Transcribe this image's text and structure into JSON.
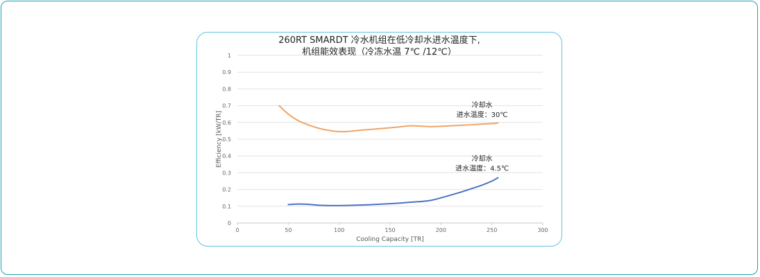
{
  "chart_data": {
    "type": "line",
    "title_line1": "260RT SMARDT 冷水机组在低冷却水进水温度下,",
    "title_line2": "机组能效表现（冷冻水温 7℃ /12℃）",
    "xlabel": "Cooling Capacity [TR]",
    "ylabel": "Efficiency [kW/TR]",
    "xlim": [
      0,
      300
    ],
    "ylim": [
      0,
      1
    ],
    "x_ticks": [
      "0",
      "50",
      "100",
      "150",
      "200",
      "250",
      "300"
    ],
    "y_ticks": [
      "0",
      "0.1",
      "0.2",
      "0.3",
      "0.4",
      "0.5",
      "0.6",
      "0.7",
      "0.8",
      "0.9",
      "1"
    ],
    "grid": "horizontal",
    "series": [
      {
        "color": "#f0a468",
        "x": [
          41,
          50,
          60,
          70,
          80,
          90,
          100,
          110,
          120,
          130,
          140,
          150,
          160,
          170,
          180,
          190,
          200,
          210,
          220,
          230,
          240,
          250,
          256
        ],
        "y": [
          0.7,
          0.65,
          0.61,
          0.585,
          0.565,
          0.552,
          0.545,
          0.547,
          0.553,
          0.558,
          0.563,
          0.568,
          0.574,
          0.58,
          0.578,
          0.575,
          0.577,
          0.58,
          0.583,
          0.586,
          0.59,
          0.593,
          0.597
        ]
      },
      {
        "color": "#4a72c4",
        "x": [
          50,
          60,
          70,
          80,
          90,
          100,
          110,
          120,
          130,
          140,
          150,
          160,
          170,
          180,
          190,
          200,
          210,
          220,
          230,
          240,
          250,
          256
        ],
        "y": [
          0.11,
          0.113,
          0.111,
          0.106,
          0.104,
          0.104,
          0.105,
          0.107,
          0.109,
          0.112,
          0.115,
          0.119,
          0.124,
          0.128,
          0.135,
          0.15,
          0.167,
          0.185,
          0.205,
          0.225,
          0.25,
          0.27
        ]
      }
    ],
    "annotations": [
      {
        "line1": "冷却水",
        "line2": "进水温度：30℃",
        "x": 250,
        "y": 0.69
      },
      {
        "line1": "冷却水",
        "line2": "进水温度：4.5℃",
        "x": 250,
        "y": 0.37
      }
    ]
  }
}
